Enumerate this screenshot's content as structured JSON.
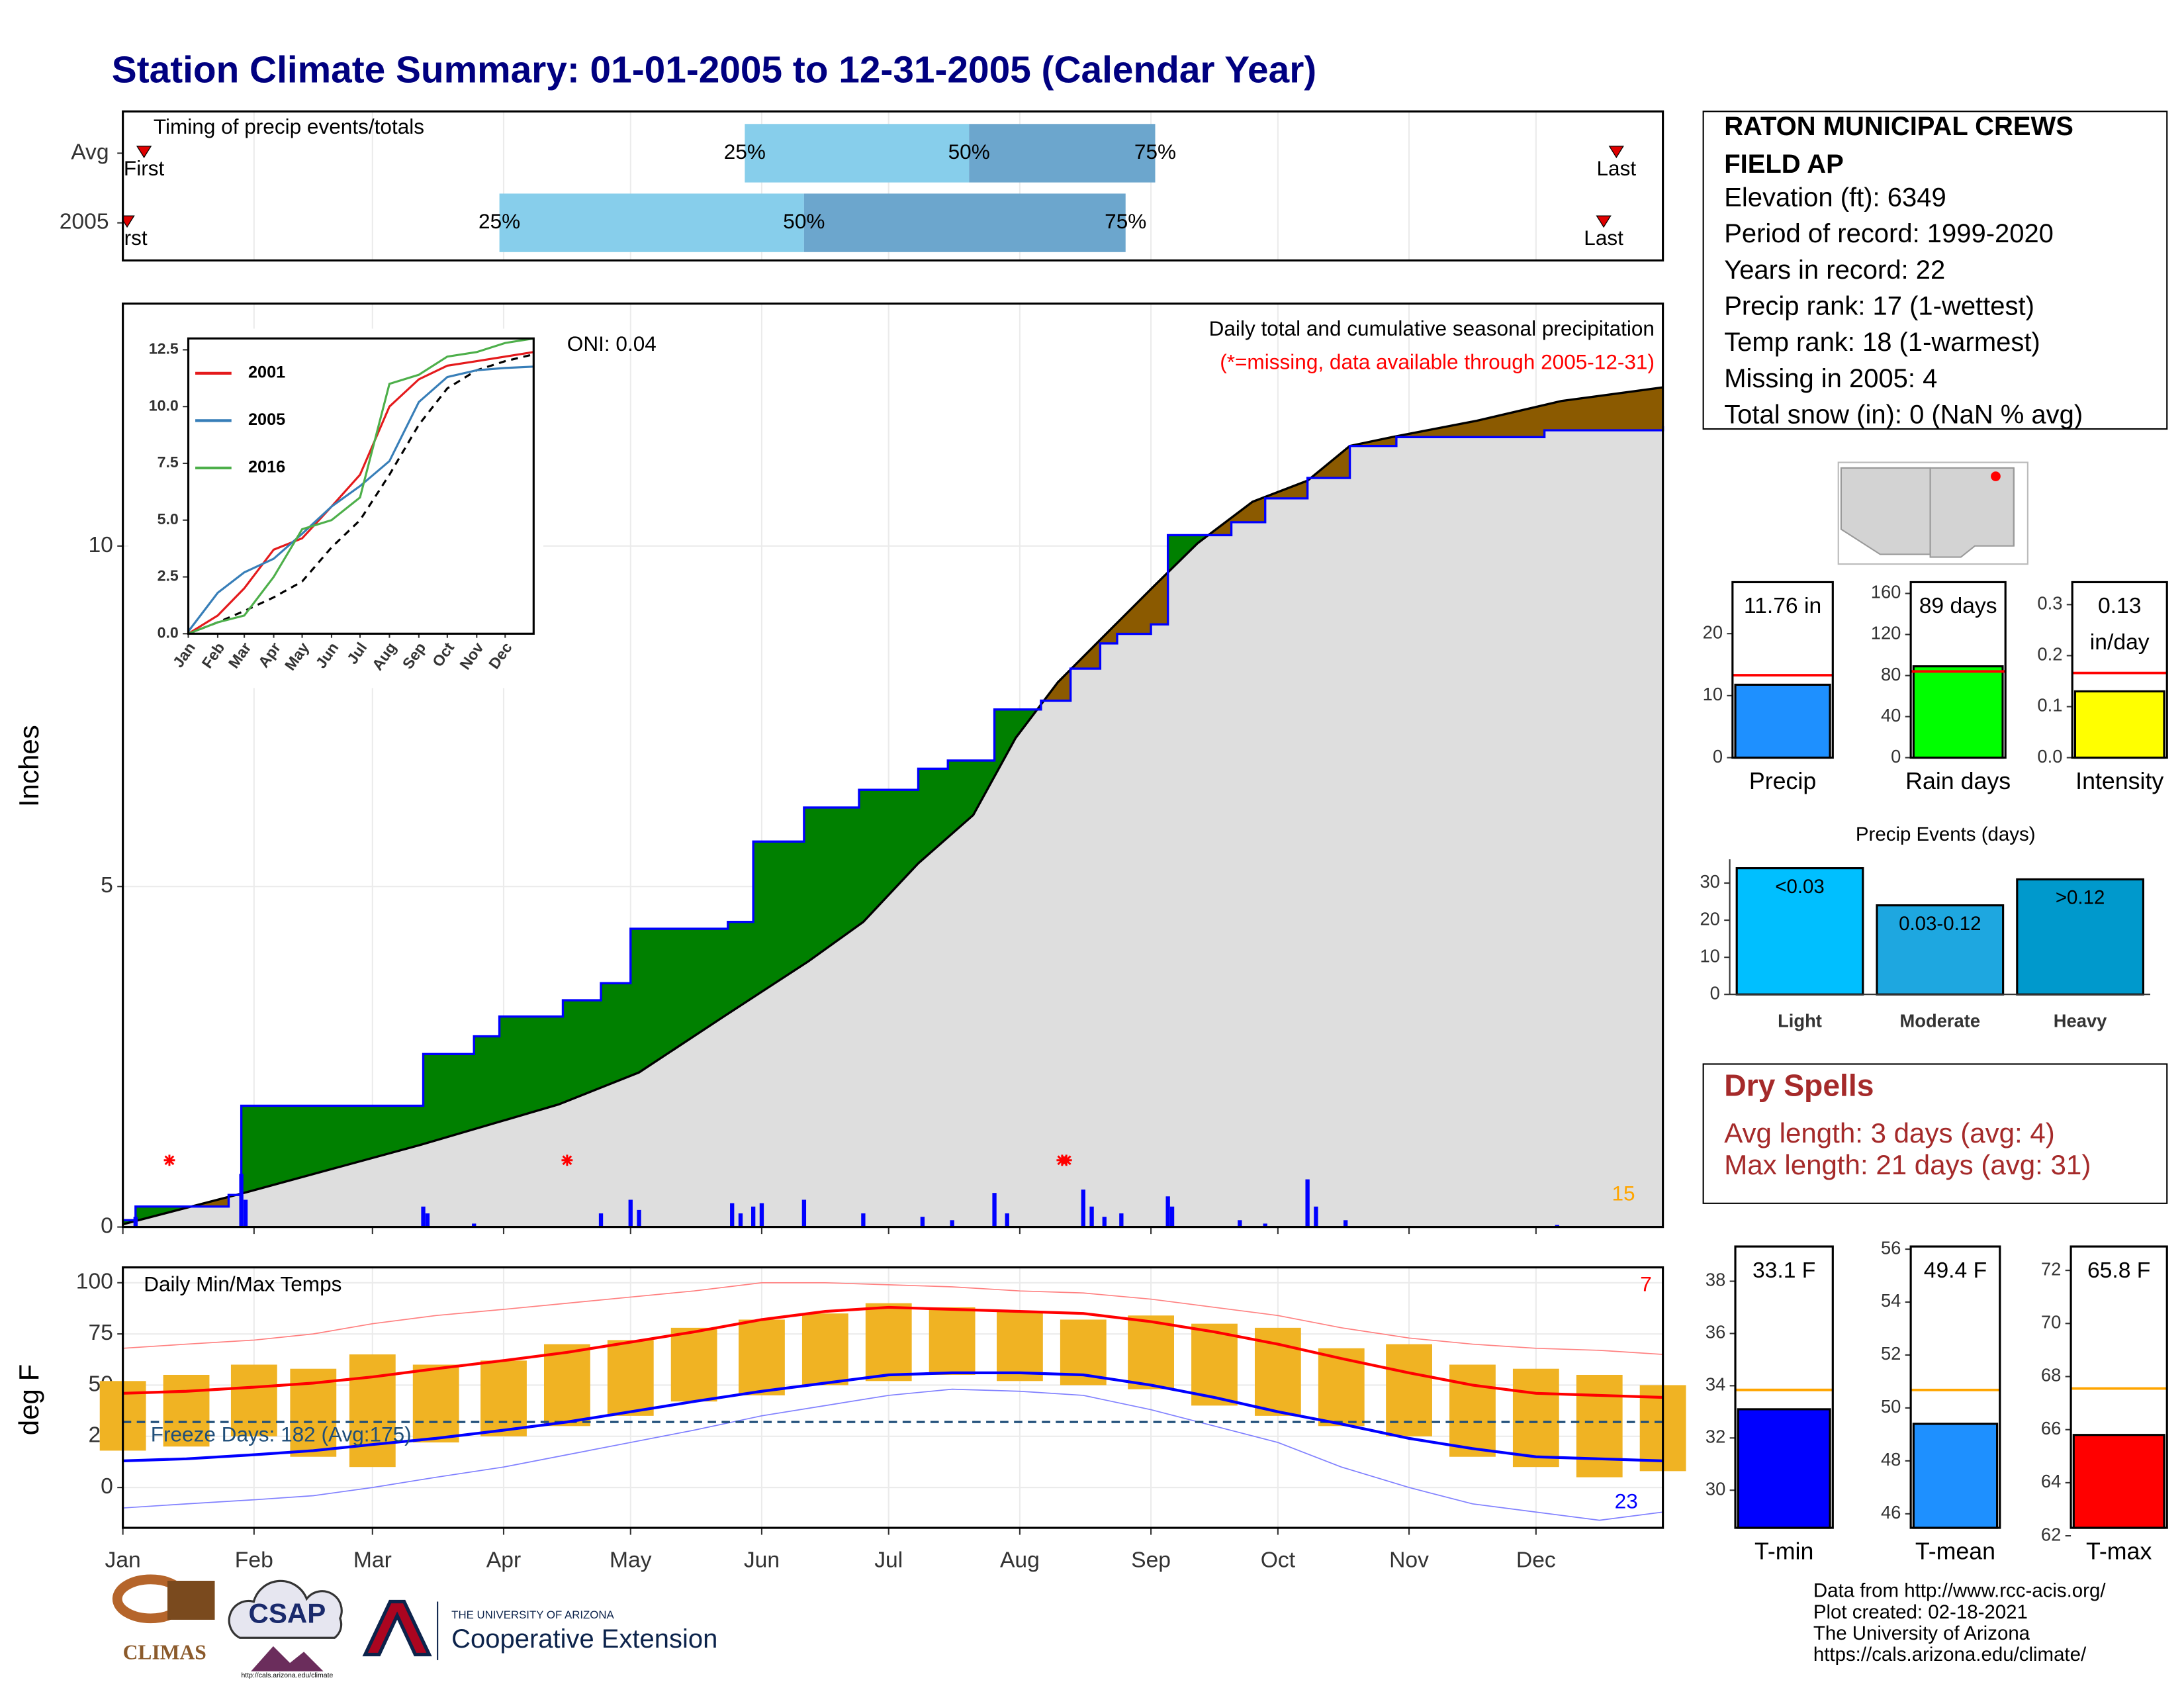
{
  "title": "Station Climate Summary: 01-01-2005 to 12-31-2005 (Calendar Year)",
  "station": {
    "name_lines": [
      "RATON MUNICIPAL CREWS",
      "FIELD AP"
    ],
    "lines": [
      "Elevation (ft): 6349",
      "Period of record: 1999-2020",
      "Years in record: 22",
      "Precip rank: 17 (1-wettest)",
      "Temp rank: 18 (1-warmest)",
      "Missing in 2005: 4",
      "Total snow (in): 0 (NaN % avg)"
    ]
  },
  "dry_spells": {
    "title": "Dry Spells",
    "lines": [
      "Avg length: 3 days (avg: 4)",
      "Max length: 21 days (avg: 31)"
    ]
  },
  "footer": {
    "logos": [
      "CLIMAS",
      "CSAP",
      "THE UNIVERSITY OF ARIZONA",
      "Cooperative Extension",
      "http://cals.arizona.edu/climate"
    ],
    "credits": [
      "Data from http://www.rcc-acis.org/",
      "Plot created: 02-18-2021",
      "The University of Arizona",
      "https://cals.arizona.edu/climate/"
    ]
  },
  "chart_data": [
    {
      "type": "range",
      "title": "Timing of precip events/totals",
      "xlim": [
        1,
        365
      ],
      "marker_labels": [
        "First",
        "25%",
        "50%",
        "75%",
        "Last"
      ],
      "colors": [
        "#87ceeb",
        "#6ca6cd"
      ],
      "rows": [
        {
          "label": "Avg",
          "values": [
            6,
            148,
            201,
            245,
            354
          ]
        },
        {
          "label": "2005",
          "values": [
            2,
            90,
            162,
            238,
            351
          ]
        }
      ]
    },
    {
      "type": "area",
      "ylabel": "Inches",
      "xlim": [
        1,
        365
      ],
      "ylim": [
        0,
        13.56
      ],
      "yticks": [
        0,
        5,
        10
      ],
      "grid": true,
      "annotations": [
        "Daily total and cumulative seasonal precipitation",
        "(*=missing, data available through 2005-12-31)",
        "ONI: 0.04",
        "15"
      ],
      "series": [
        {
          "name": "2005",
          "color": "#0000ff",
          "step": true,
          "x": [
            1,
            4,
            26,
            29,
            72,
            84,
            90,
            105,
            114,
            121,
            144,
            150,
            162,
            175,
            189,
            196,
            207,
            218,
            225,
            232,
            236,
            244,
            248,
            263,
            271,
            281,
            291,
            302,
            337,
            365
          ],
          "values": [
            0.1,
            0.3,
            0.47,
            1.78,
            2.54,
            2.8,
            3.09,
            3.33,
            3.58,
            4.38,
            4.48,
            5.66,
            6.16,
            6.42,
            6.73,
            6.85,
            7.6,
            7.73,
            8.2,
            8.57,
            8.71,
            8.85,
            10.16,
            10.35,
            10.7,
            11.0,
            11.47,
            11.6,
            11.7,
            11.76
          ]
        }
      ],
      "average": {
        "color": "#000000",
        "x": [
          1,
          29,
          71,
          104,
          123,
          143,
          163,
          176,
          189,
          202,
          212,
          222,
          235,
          245,
          255,
          268,
          281,
          291,
          301,
          321,
          341,
          365
        ],
        "values": [
          0.04,
          0.49,
          1.2,
          1.8,
          2.27,
          3.09,
          3.9,
          4.48,
          5.34,
          6.05,
          7.18,
          8.0,
          8.81,
          9.43,
          10.04,
          10.65,
          10.96,
          11.47,
          11.6,
          11.84,
          12.13,
          12.33
        ]
      },
      "surplus_color": "#008000",
      "deficit_color": "#8b5a00",
      "base_color": "#dedede",
      "daily": {
        "color": "#0000ff",
        "x": [
          4,
          29,
          30,
          72,
          73,
          84,
          114,
          121,
          123,
          145,
          147,
          150,
          152,
          162,
          176,
          190,
          197,
          207,
          210,
          228,
          230,
          233,
          237,
          248,
          249,
          265,
          271,
          281,
          283,
          290,
          340
        ],
        "values": [
          0.15,
          0.78,
          0.4,
          0.3,
          0.2,
          0.05,
          0.2,
          0.4,
          0.25,
          0.35,
          0.2,
          0.3,
          0.35,
          0.4,
          0.2,
          0.15,
          0.1,
          0.5,
          0.2,
          0.55,
          0.3,
          0.15,
          0.2,
          0.45,
          0.3,
          0.1,
          0.05,
          0.7,
          0.3,
          0.1,
          0.03
        ]
      },
      "missing": {
        "x": [
          12,
          106,
          223,
          224
        ],
        "y": 0.98,
        "color": "#ff0000"
      }
    },
    {
      "type": "line",
      "xlim": [
        1,
        365
      ],
      "ylim": [
        0,
        13.0
      ],
      "yticks": [
        {
          "value": 0,
          "label": "0.0"
        },
        2.5,
        {
          "value": 5,
          "label": "5.0"
        },
        7.5,
        {
          "value": 10,
          "label": "10.0"
        },
        12.5
      ],
      "xticks": [
        {
          "value": 1,
          "label": "Jan"
        },
        {
          "value": 32,
          "label": "Feb"
        },
        {
          "value": 60,
          "label": "Mar"
        },
        {
          "value": 91,
          "label": "Apr"
        },
        {
          "value": 121,
          "label": "May"
        },
        {
          "value": 152,
          "label": "Jun"
        },
        {
          "value": 182,
          "label": "Jul"
        },
        {
          "value": 213,
          "label": "Aug"
        },
        {
          "value": 244,
          "label": "Sep"
        },
        {
          "value": 274,
          "label": "Oct"
        },
        {
          "value": 305,
          "label": "Nov"
        },
        {
          "value": 335,
          "label": "Dec"
        }
      ],
      "x": [
        1,
        32,
        60,
        91,
        121,
        152,
        182,
        213,
        244,
        274,
        305,
        335,
        365
      ],
      "series": [
        {
          "name": "2001",
          "color": "#e41a1c",
          "values": [
            0,
            0.8,
            2.0,
            3.7,
            4.2,
            5.6,
            7.0,
            10.0,
            11.2,
            11.8,
            12.0,
            12.2,
            12.4
          ]
        },
        {
          "name": "2005",
          "color": "#377eb8",
          "values": [
            0.1,
            1.8,
            2.7,
            3.3,
            4.4,
            5.6,
            6.5,
            7.6,
            10.2,
            11.3,
            11.6,
            11.7,
            11.76
          ]
        },
        {
          "name": "2016",
          "color": "#4daf4a",
          "values": [
            0,
            0.5,
            0.8,
            2.5,
            4.6,
            5.0,
            6.0,
            11.0,
            11.4,
            12.2,
            12.4,
            12.8,
            13.0
          ]
        }
      ],
      "average": {
        "color": "#000000",
        "values": [
          0,
          0.5,
          1.0,
          1.6,
          2.3,
          3.8,
          5.0,
          7.0,
          9.2,
          10.8,
          11.6,
          12.0,
          12.3
        ]
      }
    },
    {
      "type": "bar",
      "categories": [
        "Precip"
      ],
      "values": [
        11.76
      ],
      "label_lines": [
        "11.76 in"
      ],
      "average": 13.3,
      "color": "#1e90ff",
      "average_color": "#ff0000",
      "ylim": [
        0,
        28.3
      ],
      "yticks": [
        0,
        10,
        20
      ]
    },
    {
      "type": "bar",
      "categories": [
        "Rain days"
      ],
      "values": [
        89
      ],
      "label_lines": [
        "89 days"
      ],
      "average": 84,
      "color": "#00ff00",
      "average_color": "#ff0000",
      "ylim": [
        0,
        171
      ],
      "yticks": [
        0,
        40,
        80,
        120,
        160
      ]
    },
    {
      "type": "bar",
      "categories": [
        "Intensity"
      ],
      "values": [
        0.13
      ],
      "label_lines": [
        "0.13",
        "in/day"
      ],
      "average": 0.166,
      "color": "#ffff00",
      "average_color": "#ff0000",
      "ylim": [
        0,
        0.344
      ],
      "yticks": [
        {
          "value": 0,
          "label": "0.0"
        },
        0.1,
        0.2,
        0.3
      ]
    },
    {
      "type": "bars",
      "title": "Precip Events (days)",
      "categories": [
        "Light",
        "Moderate",
        "Heavy"
      ],
      "values": [
        34,
        24,
        31
      ],
      "bar_labels": [
        "<0.03",
        "0.03-0.12",
        ">0.12"
      ],
      "colors": [
        "#00bfff",
        "#1ea7e0",
        "#0099cc"
      ],
      "ylim": [
        0,
        36.4
      ],
      "yticks": [
        0,
        10,
        20,
        30
      ]
    },
    {
      "type": "temps",
      "title": "Daily Min/Max Temps",
      "ylabel": "deg F",
      "xlim": [
        1,
        365
      ],
      "ylim": [
        -19.7,
        107.5
      ],
      "yticks": [
        0,
        25,
        50,
        75,
        100
      ],
      "grid": true,
      "annotations": [
        "Freeze Days: 182 (Avg:175)",
        "7",
        "23"
      ],
      "freeze_line": 32,
      "xticks": [
        {
          "value": 1,
          "label": "Jan"
        },
        {
          "value": 32,
          "label": "Feb"
        },
        {
          "value": 60,
          "label": "Mar"
        },
        {
          "value": 91,
          "label": "Apr"
        },
        {
          "value": 121,
          "label": "May"
        },
        {
          "value": 152,
          "label": "Jun"
        },
        {
          "value": 182,
          "label": "Jul"
        },
        {
          "value": 213,
          "label": "Aug"
        },
        {
          "value": 244,
          "label": "Sep"
        },
        {
          "value": 274,
          "label": "Oct"
        },
        {
          "value": 305,
          "label": "Nov"
        },
        {
          "value": 335,
          "label": "Dec"
        }
      ],
      "x": [
        1,
        16,
        32,
        46,
        60,
        75,
        91,
        106,
        121,
        136,
        152,
        167,
        182,
        197,
        213,
        228,
        244,
        259,
        274,
        289,
        305,
        320,
        335,
        350,
        365
      ],
      "observed_max": [
        52,
        55,
        60,
        58,
        65,
        60,
        62,
        70,
        72,
        78,
        82,
        85,
        90,
        88,
        86,
        82,
        84,
        80,
        78,
        68,
        70,
        60,
        58,
        55,
        50
      ],
      "observed_min": [
        18,
        20,
        25,
        15,
        10,
        22,
        25,
        30,
        35,
        42,
        45,
        50,
        52,
        55,
        52,
        50,
        48,
        40,
        35,
        30,
        25,
        15,
        10,
        5,
        8
      ],
      "series": [
        {
          "color": "#ff0000",
          "values": [
            46,
            47,
            49,
            51,
            54,
            58,
            62,
            66,
            71,
            76,
            82,
            86,
            88,
            87,
            86,
            85,
            81,
            76,
            70,
            63,
            56,
            50,
            46,
            45,
            44
          ]
        },
        {
          "color": "#0000ff",
          "values": [
            13,
            14,
            16,
            18,
            21,
            24,
            28,
            32,
            37,
            42,
            47,
            51,
            55,
            56,
            56,
            55,
            50,
            44,
            37,
            31,
            24,
            19,
            15,
            14,
            13
          ]
        },
        {
          "color": "#ff8080",
          "values": [
            68,
            70,
            72,
            75,
            80,
            84,
            87,
            90,
            93,
            96,
            100,
            100,
            99,
            98,
            96,
            95,
            92,
            88,
            84,
            78,
            73,
            70,
            68,
            67,
            65
          ]
        },
        {
          "color": "#8080ff",
          "values": [
            -10,
            -8,
            -6,
            -4,
            0,
            5,
            10,
            16,
            22,
            28,
            35,
            40,
            45,
            48,
            47,
            45,
            38,
            30,
            22,
            10,
            0,
            -8,
            -12,
            -16,
            -12
          ]
        }
      ],
      "observed_color": "#f0b323"
    },
    {
      "type": "bar",
      "categories": [
        "T-min"
      ],
      "values": [
        33.1
      ],
      "label_lines": [
        "33.1 F"
      ],
      "average": 33.84,
      "color": "#0000ff",
      "average_color": "#ffa500",
      "ylim": [
        28.56,
        39.33
      ],
      "yticks": [
        30,
        32,
        34,
        36,
        38
      ]
    },
    {
      "type": "bar",
      "categories": [
        "T-mean"
      ],
      "values": [
        49.4
      ],
      "label_lines": [
        "49.4 F"
      ],
      "average": 50.68,
      "color": "#1e90ff",
      "average_color": "#ffa500",
      "ylim": [
        45.47,
        56.1
      ],
      "yticks": [
        46,
        48,
        50,
        52,
        54,
        56
      ]
    },
    {
      "type": "bar",
      "categories": [
        "T-max"
      ],
      "values": [
        65.8
      ],
      "label_lines": [
        "65.8 F"
      ],
      "average": 67.55,
      "color": "#ff0000",
      "average_color": "#ffa500",
      "ylim": [
        62.3,
        72.9
      ],
      "yticks": [
        62,
        64,
        66,
        68,
        70,
        72
      ]
    }
  ]
}
